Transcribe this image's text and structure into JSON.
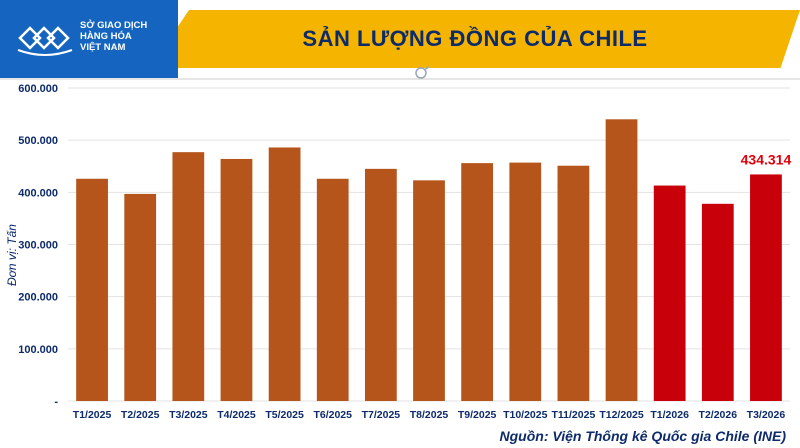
{
  "header": {
    "logo_lines": [
      "SỞ GIAO DỊCH",
      "HÀNG HÓA",
      "VIỆT NAM"
    ],
    "title": "SẢN LƯỢNG ĐỒNG CỦA CHILE",
    "band_color": "#f4b400",
    "logo_color": "#1565c0"
  },
  "source_note": "Nguồn: Viện Thống kê Quốc gia Chile (INE)",
  "chart_data": {
    "type": "bar",
    "title": "SẢN LƯỢNG ĐỒNG CỦA CHILE",
    "ylabel": "Đơn vị: Tấn",
    "xlabel": "",
    "ylim": [
      0,
      600000
    ],
    "yticks": [
      0,
      100000,
      200000,
      300000,
      400000,
      500000,
      600000
    ],
    "ytick_labels": [
      "-",
      "100.000",
      "200.000",
      "300.000",
      "400.000",
      "500.000",
      "600.000"
    ],
    "grid": true,
    "categories": [
      "T1/2025",
      "T2/2025",
      "T3/2025",
      "T4/2025",
      "T5/2025",
      "T6/2025",
      "T7/2025",
      "T8/2025",
      "T9/2025",
      "T10/2025",
      "T11/2025",
      "T12/2025",
      "T1/2026",
      "T2/2026",
      "T3/2026"
    ],
    "values": [
      426000,
      397000,
      477000,
      464000,
      486000,
      426000,
      445000,
      423000,
      456000,
      457000,
      451000,
      540000,
      413000,
      378000,
      434314
    ],
    "colors": [
      "#b5541b",
      "#b5541b",
      "#b5541b",
      "#b5541b",
      "#b5541b",
      "#b5541b",
      "#b5541b",
      "#b5541b",
      "#b5541b",
      "#b5541b",
      "#b5541b",
      "#b5541b",
      "#c8000a",
      "#c8000a",
      "#c8000a"
    ],
    "data_labels": [
      {
        "category": "T3/2026",
        "text": "434.314",
        "color": "#e0000a"
      }
    ]
  }
}
